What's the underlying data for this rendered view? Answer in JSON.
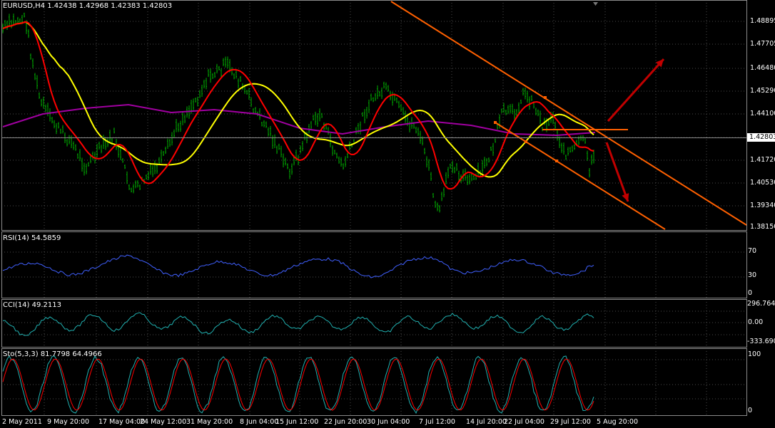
{
  "symbol_header": "EURUSD,H4  1.42438 1.42968 1.42383 1.42803",
  "price_axis": [
    "1.48895",
    "1.47705",
    "1.46480",
    "1.45290",
    "1.44100",
    "1.42803",
    "1.41720",
    "1.40530",
    "1.39340",
    "1.38150"
  ],
  "current_price": "1.42803",
  "rsi": {
    "label": "RSI(14) 54.5859",
    "levels": [
      "70",
      "30",
      "0"
    ]
  },
  "cci": {
    "label": "CCI(14) 49.2113",
    "levels": [
      "296.7647",
      "0.00",
      "-333.690"
    ]
  },
  "sto": {
    "label": "Sto(5,3,3) 81.7798 64.4966",
    "levels": [
      "100",
      "0"
    ]
  },
  "time_axis": [
    "2 May 2011",
    "9 May 20:00",
    "17 May 04:00",
    "24 May 12:00",
    "31 May 20:00",
    "8 Jun 04:00",
    "15 Jun 12:00",
    "22 Jun 20:00",
    "30 Jun 04:00",
    "7 Jul 12:00",
    "14 Jul 20:00",
    "22 Jul 04:00",
    "29 Jul 12:00",
    "5 Aug 20:00"
  ],
  "colors": {
    "candles": "#00b000",
    "ma_red": "#ff0000",
    "ma_yellow": "#ffff00",
    "ma_purple": "#a000a0",
    "channel": "#ff6000",
    "arrows": "#c00000",
    "rsi": "#4060ff",
    "cci": "#20b0b0",
    "sto_main": "#20b0b0",
    "sto_signal": "#ff0000",
    "grid": "#4a4a4a"
  }
}
